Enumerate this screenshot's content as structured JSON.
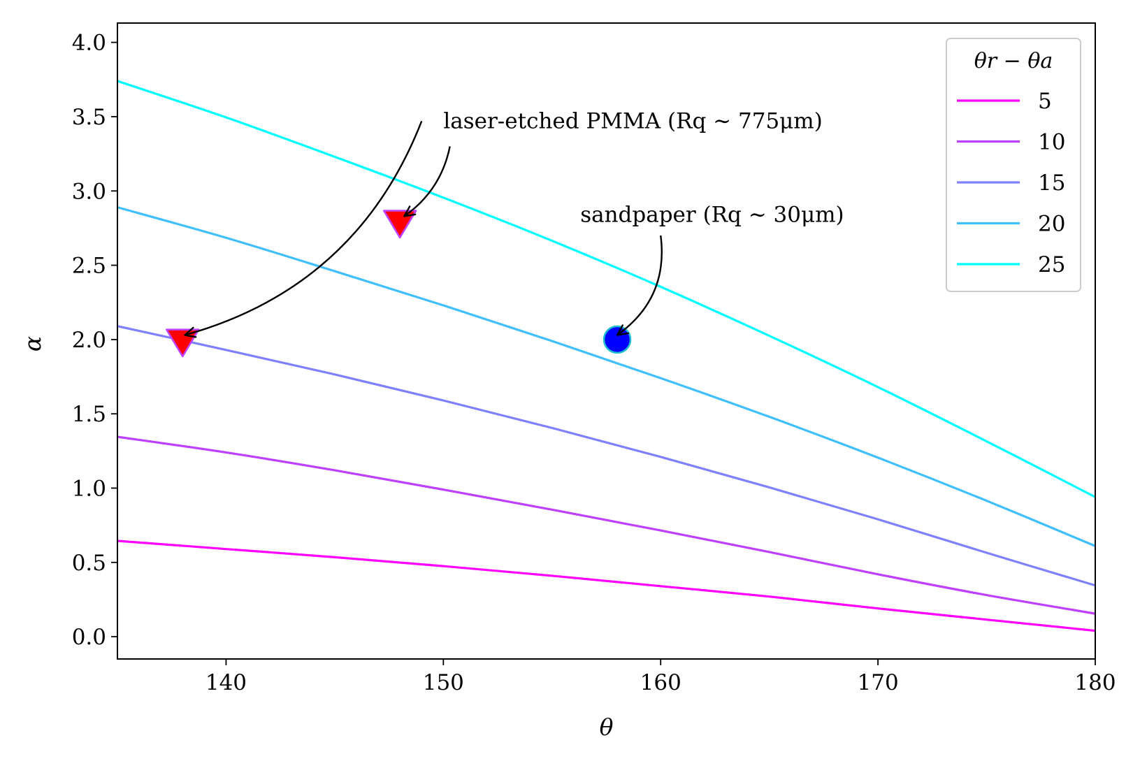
{
  "chart_data": {
    "type": "line",
    "xlabel": "θ",
    "ylabel": "α",
    "xlim": [
      135,
      180
    ],
    "ylim": [
      -0.15,
      4.13
    ],
    "xticks": [
      140,
      150,
      160,
      170,
      180
    ],
    "xtick_labels": [
      "140",
      "150",
      "160",
      "170",
      "180"
    ],
    "yticks": [
      0.0,
      0.5,
      1.0,
      1.5,
      2.0,
      2.5,
      3.0,
      3.5,
      4.0
    ],
    "ytick_labels": [
      "0.0",
      "0.5",
      "1.0",
      "1.5",
      "2.0",
      "2.5",
      "3.0",
      "3.5",
      "4.0"
    ],
    "grid": false,
    "legend": {
      "title": "θr − θa",
      "placement": "top-right"
    },
    "series": [
      {
        "name": "5",
        "color": "#ff00ff",
        "x": [
          135,
          140,
          145,
          150,
          155,
          160,
          165,
          170,
          175,
          180
        ],
        "y": [
          0.645,
          0.59,
          0.535,
          0.475,
          0.41,
          0.34,
          0.27,
          0.19,
          0.115,
          0.04
        ]
      },
      {
        "name": "10",
        "color": "#bf40ff",
        "x": [
          135,
          140,
          145,
          150,
          155,
          160,
          165,
          170,
          175,
          180
        ],
        "y": [
          1.345,
          1.24,
          1.12,
          0.99,
          0.855,
          0.715,
          0.57,
          0.42,
          0.28,
          0.155
        ]
      },
      {
        "name": "15",
        "color": "#7f80ff",
        "x": [
          135,
          140,
          145,
          150,
          155,
          160,
          165,
          170,
          175,
          180
        ],
        "y": [
          2.09,
          1.93,
          1.765,
          1.59,
          1.405,
          1.21,
          1.005,
          0.79,
          0.565,
          0.345
        ]
      },
      {
        "name": "20",
        "color": "#40bfff",
        "x": [
          135,
          140,
          145,
          150,
          155,
          160,
          165,
          170,
          175,
          180
        ],
        "y": [
          2.89,
          2.685,
          2.46,
          2.23,
          1.99,
          1.74,
          1.48,
          1.205,
          0.915,
          0.61
        ]
      },
      {
        "name": "25",
        "color": "#00ffff",
        "x": [
          135,
          140,
          145,
          150,
          155,
          160,
          165,
          170,
          175,
          180
        ],
        "y": [
          3.74,
          3.495,
          3.23,
          2.955,
          2.665,
          2.355,
          2.025,
          1.68,
          1.315,
          0.94
        ]
      }
    ],
    "markers": [
      {
        "name": "laser-etched-marker-1",
        "shape": "triangle-down",
        "x": 138,
        "y": 2.0,
        "fill": "#ff0000",
        "edge": "#bf40ff"
      },
      {
        "name": "laser-etched-marker-2",
        "shape": "triangle-down",
        "x": 148,
        "y": 2.8,
        "fill": "#ff0000",
        "edge": "#bf40ff"
      },
      {
        "name": "sandpaper-marker",
        "shape": "circle",
        "x": 158,
        "y": 2.0,
        "fill": "#0000ff",
        "edge": "#20c0d0"
      }
    ],
    "annotations": [
      {
        "name": "laser-annotation",
        "text": "laser-etched PMMA (Rq ∼ 775μm)",
        "x": 150,
        "y": 3.47,
        "arrows": [
          {
            "from": [
              149,
              3.47
            ],
            "to": [
              138.1,
              2.03
            ],
            "rad": 0.25
          },
          {
            "from": [
              150.3,
              3.3
            ],
            "to": [
              148.2,
              2.83
            ],
            "rad": 0.2
          }
        ]
      },
      {
        "name": "sandpaper-annotation",
        "text": "sandpaper (Rq ∼ 30μm)",
        "x": 156.3,
        "y": 2.84,
        "arrows": [
          {
            "from": [
              160,
              2.7
            ],
            "to": [
              158,
              2.03
            ],
            "rad": 0.3
          }
        ]
      }
    ]
  }
}
